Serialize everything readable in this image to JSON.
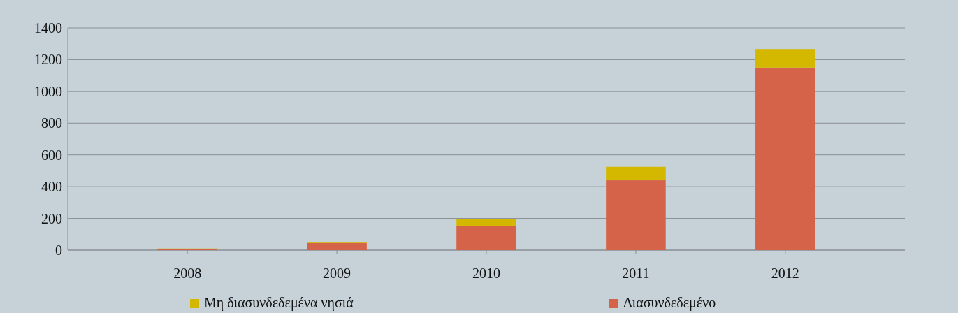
{
  "chart_data": {
    "type": "bar",
    "stacked": true,
    "categories": [
      "2008",
      "2009",
      "2010",
      "2011",
      "2012"
    ],
    "series": [
      {
        "name": "Διασυνδεδεμένο",
        "color": "#d5634a",
        "values": [
          5,
          45,
          150,
          440,
          1150
        ]
      },
      {
        "name": "Μη διασυνδεδεμένα νησιά",
        "color": "#d4b800",
        "values": [
          5,
          5,
          45,
          85,
          117
        ]
      }
    ],
    "ylim": [
      0,
      1400
    ],
    "yticks": [
      0,
      200,
      400,
      600,
      800,
      1000,
      1200,
      1400
    ],
    "grid": "y",
    "legend": "bottom"
  }
}
